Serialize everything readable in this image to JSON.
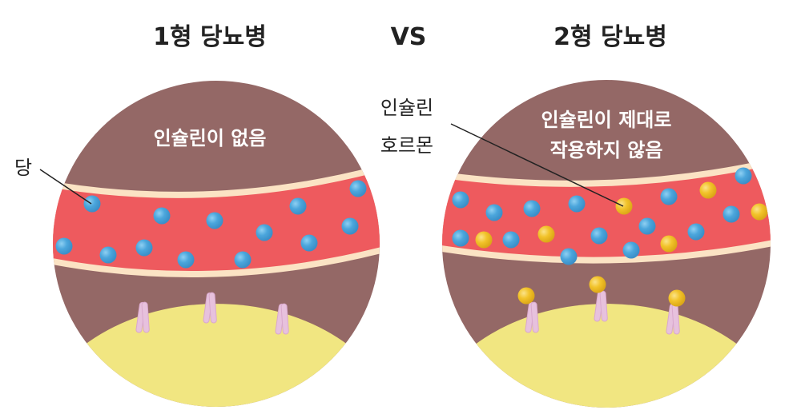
{
  "titles": {
    "left": "1형 당뇨병",
    "vs": "VS",
    "right": "2형 당뇨병"
  },
  "left_panel": {
    "caption": "인슐린이 없음",
    "callout": "당"
  },
  "right_panel": {
    "caption_line1": "인슐린이 제대로",
    "caption_line2": "작용하지 않음",
    "callout_line1": "인슐린",
    "callout_line2": "호르몬"
  },
  "colors": {
    "tissue": "#946866",
    "vessel": "#ee5a5e",
    "vessel_wall": "#fbe3c4",
    "cell": "#f1e681",
    "glucose": "#4ba6dc",
    "insulin": "#f2c32a",
    "receptor": "#e7c1dd"
  }
}
